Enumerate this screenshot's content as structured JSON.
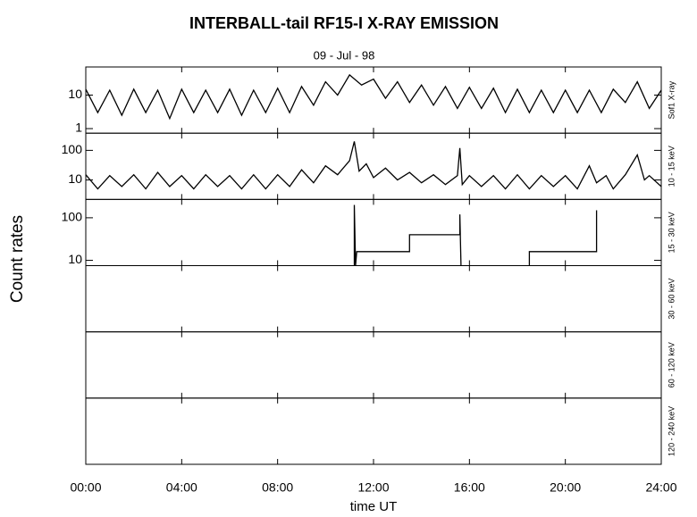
{
  "chart_data": {
    "type": "line",
    "title": "INTERBALL-tail  RF15-I   X-RAY  EMISSION",
    "subtitle": "09 - Jul - 98",
    "xlabel": "time UT",
    "ylabel": "Count  rates",
    "xlim": [
      0,
      24
    ],
    "xticks": [
      {
        "value": 0,
        "label": "00:00"
      },
      {
        "value": 4,
        "label": "04:00"
      },
      {
        "value": 8,
        "label": "08:00"
      },
      {
        "value": 12,
        "label": "12:00"
      },
      {
        "value": 16,
        "label": "16:00"
      },
      {
        "value": 20,
        "label": "20:00"
      },
      {
        "value": 24,
        "label": "24:00"
      }
    ],
    "panels": [
      {
        "label": "Sof1 X-ray",
        "log": true,
        "ylim": [
          0.73,
          69
        ],
        "yticks": [
          1,
          10
        ],
        "series": [
          {
            "color": "#000000",
            "x": [
              0,
              0.5,
              1,
              1.5,
              2,
              2.5,
              3,
              3.5,
              4,
              4.5,
              5,
              5.5,
              6,
              6.5,
              7,
              7.5,
              8,
              8.5,
              9,
              9.5,
              10,
              10.5,
              11,
              11.5,
              12,
              12.5,
              13,
              13.5,
              14,
              14.5,
              15,
              15.5,
              16,
              16.5,
              17,
              17.5,
              18,
              18.5,
              19,
              19.5,
              20,
              20.5,
              21,
              21.5,
              22,
              22.5,
              23,
              23.5,
              24
            ],
            "values": [
              15,
              3,
              14,
              2.5,
              15,
              3,
              14,
              2,
              15,
              3,
              14,
              3,
              15,
              2.5,
              14,
              3,
              16,
              3,
              18,
              5,
              25,
              10,
              40,
              20,
              30,
              8,
              25,
              6,
              20,
              5,
              18,
              4,
              17,
              4,
              16,
              3,
              15,
              3,
              14,
              3,
              14,
              3,
              14,
              3,
              15,
              6,
              25,
              4,
              14
            ]
          }
        ]
      },
      {
        "label": "10 - 15 keV",
        "log": true,
        "ylim": [
          2.2,
          380
        ],
        "yticks": [
          10,
          100
        ],
        "series": [
          {
            "color": "#000000",
            "x": [
              0,
              0.5,
              1,
              1.5,
              2,
              2.5,
              3,
              3.5,
              4,
              4.5,
              5,
              5.5,
              6,
              6.5,
              7,
              7.5,
              8,
              8.5,
              9,
              9.5,
              10,
              10.5,
              11,
              11.2,
              11.4,
              11.7,
              12,
              12.5,
              13,
              13.5,
              14,
              14.5,
              15,
              15.5,
              15.6,
              15.7,
              16,
              16.5,
              17,
              17.5,
              18,
              18.5,
              19,
              19.5,
              20,
              20.5,
              21,
              21.3,
              21.7,
              22,
              22.5,
              23,
              23.3,
              23.5,
              24
            ],
            "values": [
              15,
              5,
              14,
              6,
              15,
              5,
              18,
              6,
              14,
              5,
              15,
              6,
              14,
              5,
              15,
              5,
              15,
              6,
              22,
              8,
              30,
              15,
              45,
              200,
              20,
              35,
              12,
              25,
              10,
              18,
              8,
              15,
              7,
              14,
              120,
              7,
              14,
              6,
              14,
              5,
              15,
              5,
              14,
              6,
              14,
              5,
              30,
              8,
              14,
              5,
              15,
              70,
              10,
              14,
              6
            ]
          }
        ]
      },
      {
        "label": "15 - 30 keV",
        "log": true,
        "ylim": [
          7.5,
          270
        ],
        "yticks": [
          10,
          100
        ],
        "series": [
          {
            "color": "#000000",
            "x": [
              11.2,
              11.2,
              11.25,
              11.3,
              13.5,
              13.5,
              15.6,
              15.6,
              15.65,
              16,
              18.5,
              18.5,
              21.3,
              21.3
            ],
            "values": [
              7.5,
              200,
              7.5,
              16,
              16,
              40,
              40,
              120,
              7.5,
              null,
              7.5,
              16,
              16,
              150
            ]
          }
        ]
      },
      {
        "label": "30 - 60 keV"
      },
      {
        "label": "60 - 120 keV"
      },
      {
        "label": "120 - 240 keV"
      }
    ]
  }
}
